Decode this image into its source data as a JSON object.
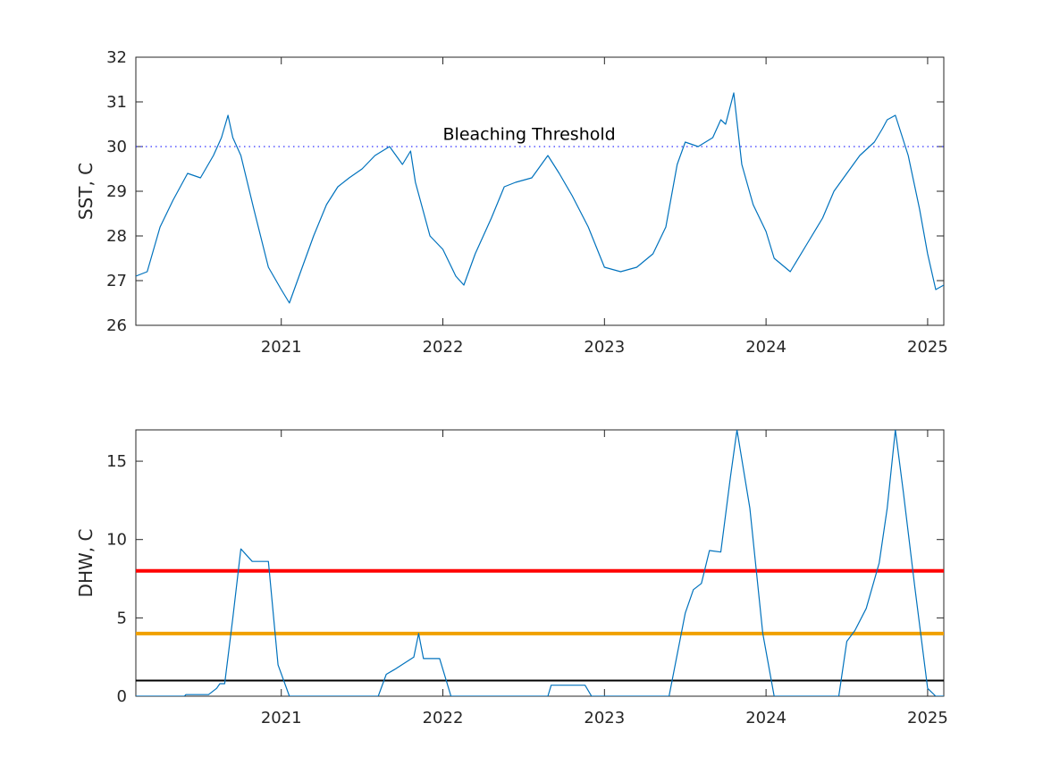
{
  "chart_data": [
    {
      "type": "line",
      "ylabel": "SST, C",
      "xlim": [
        2020.1,
        2025.1
      ],
      "ylim": [
        26,
        32
      ],
      "xticks": [
        2021,
        2022,
        2023,
        2024,
        2025
      ],
      "xtick_labels": [
        "2021",
        "2022",
        "2023",
        "2024",
        "2025"
      ],
      "yticks": [
        26,
        27,
        28,
        29,
        30,
        31,
        32
      ],
      "ytick_labels": [
        "26",
        "27",
        "28",
        "29",
        "30",
        "31",
        "32"
      ],
      "series": [
        {
          "color": "#0072BD",
          "x": [
            2020.1,
            2020.17,
            2020.25,
            2020.33,
            2020.42,
            2020.5,
            2020.58,
            2020.63,
            2020.67,
            2020.7,
            2020.75,
            2020.83,
            2020.92,
            2021.0,
            2021.05,
            2021.12,
            2021.2,
            2021.28,
            2021.35,
            2021.42,
            2021.5,
            2021.58,
            2021.67,
            2021.75,
            2021.8,
            2021.83,
            2021.92,
            2022.0,
            2022.08,
            2022.13,
            2022.2,
            2022.3,
            2022.38,
            2022.45,
            2022.55,
            2022.65,
            2022.72,
            2022.8,
            2022.9,
            2023.0,
            2023.1,
            2023.2,
            2023.3,
            2023.38,
            2023.45,
            2023.5,
            2023.58,
            2023.67,
            2023.72,
            2023.75,
            2023.8,
            2023.85,
            2023.92,
            2024.0,
            2024.05,
            2024.15,
            2024.25,
            2024.35,
            2024.42,
            2024.5,
            2024.58,
            2024.67,
            2024.72,
            2024.75,
            2024.8,
            2024.88,
            2024.95,
            2025.0,
            2025.05,
            2025.1
          ],
          "y": [
            27.1,
            27.2,
            28.2,
            28.8,
            29.4,
            29.3,
            29.8,
            30.2,
            30.7,
            30.2,
            29.8,
            28.6,
            27.3,
            26.8,
            26.5,
            27.2,
            28.0,
            28.7,
            29.1,
            29.3,
            29.5,
            29.8,
            30.0,
            29.6,
            29.9,
            29.2,
            28.0,
            27.7,
            27.1,
            26.9,
            27.6,
            28.4,
            29.1,
            29.2,
            29.3,
            29.8,
            29.4,
            28.9,
            28.2,
            27.3,
            27.2,
            27.3,
            27.6,
            28.2,
            29.6,
            30.1,
            30.0,
            30.2,
            30.6,
            30.5,
            31.2,
            29.6,
            28.7,
            28.1,
            27.5,
            27.2,
            27.8,
            28.4,
            29.0,
            29.4,
            29.8,
            30.1,
            30.4,
            30.6,
            30.7,
            29.8,
            28.6,
            27.6,
            26.8,
            26.9
          ]
        }
      ],
      "threshold_line": {
        "y": 30,
        "color": "#0000ff",
        "style": "dotted"
      },
      "annotations": [
        {
          "text": "Bleaching Threshold",
          "x": 2022.0,
          "y": 30.15
        }
      ]
    },
    {
      "type": "line",
      "ylabel": "DHW, C",
      "xlim": [
        2020.1,
        2025.1
      ],
      "ylim": [
        0,
        17
      ],
      "xticks": [
        2021,
        2022,
        2023,
        2024,
        2025
      ],
      "xtick_labels": [
        "2021",
        "2022",
        "2023",
        "2024",
        "2025"
      ],
      "yticks": [
        0,
        5,
        10,
        15
      ],
      "ytick_labels": [
        "0",
        "5",
        "10",
        "15"
      ],
      "series": [
        {
          "color": "#0072BD",
          "x": [
            2020.1,
            2020.4,
            2020.41,
            2020.55,
            2020.6,
            2020.62,
            2020.65,
            2020.7,
            2020.75,
            2020.82,
            2020.92,
            2020.98,
            2021.05,
            2021.3,
            2021.6,
            2021.65,
            2021.7,
            2021.82,
            2021.85,
            2021.88,
            2021.98,
            2022.05,
            2022.65,
            2022.67,
            2022.88,
            2022.92,
            2023.3,
            2023.4,
            2023.5,
            2023.55,
            2023.6,
            2023.65,
            2023.72,
            2023.78,
            2023.82,
            2023.9,
            2023.98,
            2024.05,
            2024.45,
            2024.5,
            2024.55,
            2024.62,
            2024.7,
            2024.75,
            2024.8,
            2024.85,
            2024.92,
            2025.0,
            2025.05,
            2025.1
          ],
          "y": [
            0,
            0,
            0.1,
            0.1,
            0.5,
            0.8,
            0.8,
            5,
            9.4,
            8.6,
            8.6,
            2,
            0,
            0,
            0,
            1.4,
            1.7,
            2.5,
            4,
            2.4,
            2.4,
            0,
            0,
            0.7,
            0.7,
            0,
            0,
            0,
            5.3,
            6.8,
            7.2,
            9.3,
            9.2,
            14,
            17,
            12,
            4,
            0,
            0,
            3.5,
            4.2,
            5.6,
            8.5,
            12,
            17,
            13,
            7,
            0.5,
            0,
            0
          ]
        }
      ],
      "reference_lines": [
        {
          "y": 8,
          "color": "#ff0000"
        },
        {
          "y": 4,
          "color": "#f0a000"
        },
        {
          "y": 1,
          "color": "#000000"
        }
      ]
    }
  ]
}
